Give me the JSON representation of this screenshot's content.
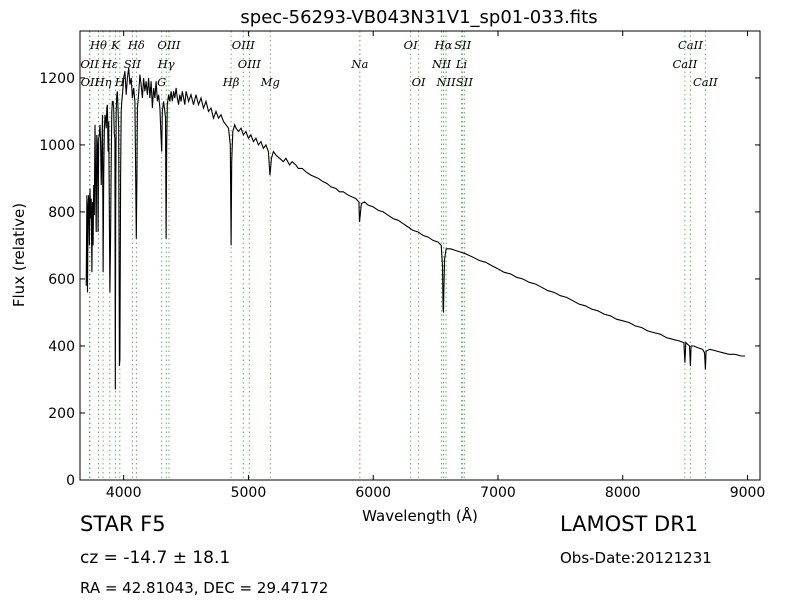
{
  "chart_data": {
    "type": "line",
    "title": "spec-56293-VB043N31V1_sp01-033.fits",
    "xlabel": "Wavelength (Å)",
    "ylabel": "Flux (relative)",
    "xlim": [
      3650,
      9100
    ],
    "ylim": [
      0,
      1340
    ],
    "xticks": [
      4000,
      5000,
      6000,
      7000,
      8000,
      9000
    ],
    "yticks": [
      0,
      200,
      400,
      600,
      800,
      1000,
      1200
    ],
    "grid": false,
    "legend": "none",
    "line_color": "#000000",
    "series": [
      {
        "points": [
          [
            3700,
            580
          ],
          [
            3705,
            850
          ],
          [
            3710,
            560
          ],
          [
            3715,
            820
          ],
          [
            3720,
            850
          ],
          [
            3725,
            700
          ],
          [
            3730,
            870
          ],
          [
            3735,
            780
          ],
          [
            3740,
            840
          ],
          [
            3745,
            620
          ],
          [
            3750,
            830
          ],
          [
            3755,
            700
          ],
          [
            3760,
            880
          ],
          [
            3765,
            790
          ],
          [
            3770,
            1060
          ],
          [
            3775,
            900
          ],
          [
            3780,
            740
          ],
          [
            3785,
            1030
          ],
          [
            3790,
            1000
          ],
          [
            3795,
            740
          ],
          [
            3800,
            1020
          ],
          [
            3805,
            1030
          ],
          [
            3810,
            1060
          ],
          [
            3815,
            1010
          ],
          [
            3820,
            880
          ],
          [
            3825,
            960
          ],
          [
            3830,
            1090
          ],
          [
            3835,
            620
          ],
          [
            3840,
            900
          ],
          [
            3845,
            1040
          ],
          [
            3850,
            1090
          ],
          [
            3855,
            1080
          ],
          [
            3860,
            1050
          ],
          [
            3865,
            1110
          ],
          [
            3870,
            1120
          ],
          [
            3875,
            980
          ],
          [
            3880,
            1070
          ],
          [
            3885,
            820
          ],
          [
            3890,
            560
          ],
          [
            3895,
            730
          ],
          [
            3900,
            950
          ],
          [
            3905,
            1100
          ],
          [
            3910,
            1130
          ],
          [
            3915,
            1130
          ],
          [
            3920,
            1110
          ],
          [
            3925,
            1030
          ],
          [
            3930,
            1020
          ],
          [
            3933,
            270
          ],
          [
            3936,
            800
          ],
          [
            3940,
            1100
          ],
          [
            3945,
            1150
          ],
          [
            3950,
            1160
          ],
          [
            3955,
            1100
          ],
          [
            3960,
            1050
          ],
          [
            3966,
            340
          ],
          [
            3970,
            360
          ],
          [
            3975,
            900
          ],
          [
            3980,
            1100
          ],
          [
            3985,
            1130
          ],
          [
            3990,
            1150
          ],
          [
            3995,
            1170
          ],
          [
            4000,
            1200
          ],
          [
            4010,
            1220
          ],
          [
            4020,
            1150
          ],
          [
            4030,
            1200
          ],
          [
            4040,
            1230
          ],
          [
            4050,
            1180
          ],
          [
            4060,
            1200
          ],
          [
            4070,
            1140
          ],
          [
            4080,
            1170
          ],
          [
            4090,
            1130
          ],
          [
            4095,
            960
          ],
          [
            4101,
            720
          ],
          [
            4106,
            900
          ],
          [
            4110,
            1110
          ],
          [
            4120,
            1150
          ],
          [
            4130,
            1210
          ],
          [
            4140,
            1180
          ],
          [
            4150,
            1140
          ],
          [
            4160,
            1200
          ],
          [
            4170,
            1160
          ],
          [
            4180,
            1190
          ],
          [
            4190,
            1150
          ],
          [
            4200,
            1200
          ],
          [
            4210,
            1140
          ],
          [
            4220,
            1190
          ],
          [
            4230,
            1110
          ],
          [
            4240,
            1170
          ],
          [
            4250,
            1140
          ],
          [
            4260,
            1190
          ],
          [
            4270,
            1130
          ],
          [
            4280,
            1150
          ],
          [
            4290,
            1110
          ],
          [
            4300,
            1020
          ],
          [
            4305,
            980
          ],
          [
            4310,
            1100
          ],
          [
            4320,
            1130
          ],
          [
            4330,
            1100
          ],
          [
            4335,
            1080
          ],
          [
            4340,
            720
          ],
          [
            4345,
            1000
          ],
          [
            4350,
            1120
          ],
          [
            4360,
            1150
          ],
          [
            4370,
            1130
          ],
          [
            4380,
            1160
          ],
          [
            4390,
            1130
          ],
          [
            4400,
            1160
          ],
          [
            4410,
            1140
          ],
          [
            4420,
            1170
          ],
          [
            4430,
            1140
          ],
          [
            4440,
            1120
          ],
          [
            4450,
            1150
          ],
          [
            4460,
            1130
          ],
          [
            4470,
            1160
          ],
          [
            4480,
            1140
          ],
          [
            4490,
            1120
          ],
          [
            4500,
            1160
          ],
          [
            4520,
            1130
          ],
          [
            4540,
            1150
          ],
          [
            4560,
            1120
          ],
          [
            4580,
            1150
          ],
          [
            4600,
            1120
          ],
          [
            4620,
            1140
          ],
          [
            4640,
            1110
          ],
          [
            4660,
            1130
          ],
          [
            4680,
            1100
          ],
          [
            4700,
            1110
          ],
          [
            4720,
            1080
          ],
          [
            4740,
            1100
          ],
          [
            4760,
            1080
          ],
          [
            4780,
            1090
          ],
          [
            4800,
            1070
          ],
          [
            4820,
            1060
          ],
          [
            4840,
            1050
          ],
          [
            4855,
            1000
          ],
          [
            4861,
            700
          ],
          [
            4866,
            950
          ],
          [
            4875,
            1040
          ],
          [
            4890,
            1060
          ],
          [
            4900,
            1050
          ],
          [
            4920,
            1040
          ],
          [
            4940,
            1050
          ],
          [
            4960,
            1030
          ],
          [
            4980,
            1040
          ],
          [
            5000,
            1020
          ],
          [
            5020,
            1030
          ],
          [
            5040,
            1010
          ],
          [
            5060,
            1020
          ],
          [
            5080,
            1000
          ],
          [
            5100,
            1010
          ],
          [
            5120,
            990
          ],
          [
            5140,
            1000
          ],
          [
            5160,
            980
          ],
          [
            5172,
            910
          ],
          [
            5178,
            930
          ],
          [
            5184,
            960
          ],
          [
            5200,
            980
          ],
          [
            5220,
            970
          ],
          [
            5250,
            960
          ],
          [
            5280,
            950
          ],
          [
            5300,
            960
          ],
          [
            5330,
            940
          ],
          [
            5350,
            950
          ],
          [
            5380,
            940
          ],
          [
            5400,
            930
          ],
          [
            5430,
            930
          ],
          [
            5460,
            920
          ],
          [
            5500,
            910
          ],
          [
            5530,
            905
          ],
          [
            5560,
            900
          ],
          [
            5600,
            890
          ],
          [
            5630,
            885
          ],
          [
            5660,
            875
          ],
          [
            5700,
            870
          ],
          [
            5730,
            860
          ],
          [
            5760,
            860
          ],
          [
            5800,
            850
          ],
          [
            5830,
            845
          ],
          [
            5860,
            840
          ],
          [
            5885,
            830
          ],
          [
            5890,
            770
          ],
          [
            5896,
            790
          ],
          [
            5905,
            825
          ],
          [
            5930,
            830
          ],
          [
            5960,
            820
          ],
          [
            6000,
            815
          ],
          [
            6040,
            805
          ],
          [
            6080,
            800
          ],
          [
            6120,
            790
          ],
          [
            6160,
            780
          ],
          [
            6200,
            775
          ],
          [
            6240,
            765
          ],
          [
            6280,
            755
          ],
          [
            6320,
            745
          ],
          [
            6360,
            740
          ],
          [
            6400,
            730
          ],
          [
            6440,
            725
          ],
          [
            6480,
            715
          ],
          [
            6520,
            710
          ],
          [
            6545,
            700
          ],
          [
            6555,
            640
          ],
          [
            6560,
            510
          ],
          [
            6563,
            500
          ],
          [
            6566,
            560
          ],
          [
            6572,
            660
          ],
          [
            6585,
            690
          ],
          [
            6620,
            690
          ],
          [
            6660,
            685
          ],
          [
            6700,
            680
          ],
          [
            6740,
            675
          ],
          [
            6800,
            665
          ],
          [
            6850,
            655
          ],
          [
            6900,
            650
          ],
          [
            6950,
            640
          ],
          [
            7000,
            630
          ],
          [
            7050,
            620
          ],
          [
            7100,
            615
          ],
          [
            7150,
            605
          ],
          [
            7200,
            600
          ],
          [
            7250,
            590
          ],
          [
            7300,
            585
          ],
          [
            7350,
            575
          ],
          [
            7400,
            565
          ],
          [
            7450,
            560
          ],
          [
            7500,
            550
          ],
          [
            7550,
            545
          ],
          [
            7600,
            535
          ],
          [
            7650,
            525
          ],
          [
            7700,
            520
          ],
          [
            7750,
            510
          ],
          [
            7800,
            505
          ],
          [
            7850,
            495
          ],
          [
            7900,
            490
          ],
          [
            7950,
            480
          ],
          [
            8000,
            475
          ],
          [
            8050,
            470
          ],
          [
            8100,
            460
          ],
          [
            8150,
            455
          ],
          [
            8200,
            445
          ],
          [
            8250,
            440
          ],
          [
            8300,
            435
          ],
          [
            8350,
            425
          ],
          [
            8400,
            420
          ],
          [
            8450,
            415
          ],
          [
            8490,
            410
          ],
          [
            8498,
            350
          ],
          [
            8505,
            410
          ],
          [
            8520,
            405
          ],
          [
            8535,
            400
          ],
          [
            8542,
            340
          ],
          [
            8548,
            400
          ],
          [
            8570,
            400
          ],
          [
            8600,
            395
          ],
          [
            8640,
            390
          ],
          [
            8655,
            380
          ],
          [
            8662,
            330
          ],
          [
            8668,
            385
          ],
          [
            8700,
            390
          ],
          [
            8750,
            385
          ],
          [
            8800,
            380
          ],
          [
            8850,
            375
          ],
          [
            8900,
            375
          ],
          [
            8950,
            370
          ],
          [
            8980,
            370
          ]
        ]
      }
    ],
    "line_markers": [
      {
        "label": "OII",
        "wl": 3727,
        "row": 1,
        "color": "#2ca02c"
      },
      {
        "label": "OII",
        "wl": 3729,
        "row": 2,
        "color": "#2ca02c"
      },
      {
        "label": "Hθ",
        "wl": 3798,
        "row": 0,
        "color": "#2ca02c"
      },
      {
        "label": "Hη",
        "wl": 3835,
        "row": 2,
        "color": "#2ca02c"
      },
      {
        "label": "Hε",
        "wl": 3889,
        "row": 1,
        "color": "#2ca02c"
      },
      {
        "label": "K",
        "wl": 3934,
        "row": 0,
        "color": "#2ca02c"
      },
      {
        "label": "SII",
        "wl": 4070,
        "row": 1,
        "color": "#2ca02c"
      },
      {
        "label": "H",
        "wl": 3969,
        "row": 2,
        "color": "#2ca02c"
      },
      {
        "label": "Hδ",
        "wl": 4102,
        "row": 0,
        "color": "#2ca02c"
      },
      {
        "label": "OIII",
        "wl": 4363,
        "row": 0,
        "color": "#2ca02c"
      },
      {
        "label": "Hγ",
        "wl": 4341,
        "row": 1,
        "color": "#2ca02c"
      },
      {
        "label": "G",
        "wl": 4305,
        "row": 2,
        "color": "#2ca02c"
      },
      {
        "label": "OIII",
        "wl": 4959,
        "row": 0,
        "color": "#2ca02c"
      },
      {
        "label": "OIII",
        "wl": 5007,
        "row": 1,
        "color": "#2ca02c"
      },
      {
        "label": "Hβ",
        "wl": 4861,
        "row": 2,
        "color": "#2ca02c"
      },
      {
        "label": "Mg",
        "wl": 5175,
        "row": 2,
        "color": "#2ca02c"
      },
      {
        "label": "Na",
        "wl": 5893,
        "row": 1,
        "color": "#d62728"
      },
      {
        "label": "OI",
        "wl": 6300,
        "row": 0,
        "color": "#2ca02c"
      },
      {
        "label": "OI",
        "wl": 6364,
        "row": 2,
        "color": "#2ca02c"
      },
      {
        "label": "Hα",
        "wl": 6563,
        "row": 0,
        "color": "#2ca02c"
      },
      {
        "label": "NII",
        "wl": 6548,
        "row": 1,
        "color": "#2ca02c"
      },
      {
        "label": "NII",
        "wl": 6584,
        "row": 2,
        "color": "#2ca02c"
      },
      {
        "label": "SII",
        "wl": 6717,
        "row": 0,
        "color": "#2ca02c"
      },
      {
        "label": "Li",
        "wl": 6708,
        "row": 1,
        "color": "#2ca02c"
      },
      {
        "label": "SII",
        "wl": 6731,
        "row": 2,
        "color": "#2ca02c"
      },
      {
        "label": "CaII",
        "wl": 8542,
        "row": 0,
        "color": "#2ca02c"
      },
      {
        "label": "CaII",
        "wl": 8498,
        "row": 1,
        "color": "#2ca02c"
      },
      {
        "label": "CaII",
        "wl": 8662,
        "row": 2,
        "color": "#2ca02c"
      }
    ]
  },
  "info": {
    "object_line": "STAR   F5",
    "cz_line": "cz = -14.7  ± 18.1",
    "radec_line": "RA = 42.81043, DEC = 29.47172",
    "survey_line": "LAMOST DR1",
    "obsdate_line": "Obs-Date:20121231"
  }
}
